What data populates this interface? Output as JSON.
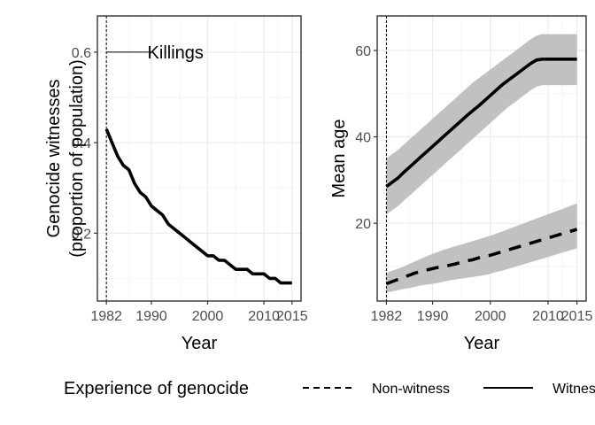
{
  "chart_data": [
    {
      "type": "line",
      "x": [
        1982,
        1983,
        1984,
        1985,
        1986,
        1987,
        1988,
        1989,
        1990,
        1991,
        1992,
        1993,
        1994,
        1995,
        1996,
        1997,
        1998,
        1999,
        2000,
        2001,
        2002,
        2003,
        2004,
        2005,
        2006,
        2007,
        2008,
        2009,
        2010,
        2011,
        2012,
        2013,
        2014,
        2015
      ],
      "series": [
        {
          "values": [
            0.43,
            0.4,
            0.37,
            0.35,
            0.34,
            0.31,
            0.29,
            0.28,
            0.26,
            0.25,
            0.24,
            0.22,
            0.21,
            0.2,
            0.19,
            0.18,
            0.17,
            0.16,
            0.15,
            0.15,
            0.14,
            0.14,
            0.13,
            0.12,
            0.12,
            0.12,
            0.11,
            0.11,
            0.11,
            0.1,
            0.1,
            0.09,
            0.09,
            0.09
          ],
          "linetype": "solid",
          "color": "#000000"
        }
      ],
      "xlabel": "Year",
      "ylabel_lines": [
        "Genocide witnesses",
        "(proportion of population)"
      ],
      "xticks": [
        1982,
        1990,
        2000,
        2010,
        2015
      ],
      "yticks": [
        0.2,
        0.4,
        0.6
      ],
      "ytick_labels": [
        "0.2",
        "0.4",
        "0.6"
      ],
      "xlim": [
        1980.4,
        1016.6
      ],
      "ylim": [
        0.05,
        0.68
      ],
      "vline": 1982,
      "annotation": {
        "text": "Killings",
        "x": 1983.2,
        "y": 0.6
      },
      "grid": true
    },
    {
      "type": "line",
      "x": [
        1982,
        1983,
        1984,
        1985,
        1986,
        1987,
        1988,
        1989,
        1990,
        1991,
        1992,
        1993,
        1994,
        1995,
        1996,
        1997,
        1998,
        1999,
        2000,
        2001,
        2002,
        2003,
        2004,
        2005,
        2006,
        2007,
        2008,
        2009,
        2010,
        2011,
        2012,
        2013,
        2014,
        2015
      ],
      "series": [
        {
          "name": "Non-witness",
          "linetype": "dashed",
          "color": "#000000",
          "values": [
            6.0,
            6.5,
            7.0,
            7.5,
            8.0,
            8.5,
            8.9,
            9.2,
            9.5,
            9.8,
            10.0,
            10.3,
            10.6,
            11.0,
            11.3,
            11.6,
            12.0,
            12.3,
            12.6,
            13.0,
            13.4,
            13.8,
            14.2,
            14.6,
            15.0,
            15.4,
            15.8,
            16.2,
            16.6,
            17.0,
            17.4,
            17.8,
            18.2,
            18.6
          ],
          "lower": [
            4.0,
            4.2,
            4.5,
            4.8,
            5.0,
            5.3,
            5.6,
            5.8,
            6.0,
            6.2,
            6.5,
            6.8,
            7.0,
            7.2,
            7.4,
            7.6,
            7.8,
            8.0,
            8.3,
            8.7,
            9.0,
            9.4,
            9.8,
            10.2,
            10.6,
            11.0,
            11.4,
            11.8,
            12.2,
            12.6,
            13.0,
            13.4,
            13.8,
            14.2
          ],
          "upper": [
            8.5,
            9.0,
            9.5,
            10.0,
            10.6,
            11.2,
            11.8,
            12.4,
            12.9,
            13.4,
            13.9,
            14.3,
            14.7,
            15.1,
            15.5,
            15.9,
            16.3,
            16.7,
            17.1,
            17.6,
            18.1,
            18.6,
            19.1,
            19.6,
            20.1,
            20.6,
            21.1,
            21.6,
            22.1,
            22.6,
            23.1,
            23.6,
            24.1,
            24.6
          ]
        },
        {
          "name": "Witness",
          "linetype": "solid",
          "color": "#000000",
          "values": [
            28.5,
            29.5,
            30.5,
            31.8,
            33.0,
            34.2,
            35.4,
            36.6,
            37.8,
            39.0,
            40.2,
            41.4,
            42.6,
            43.8,
            45.0,
            46.1,
            47.2,
            48.4,
            49.6,
            50.8,
            52.0,
            53.0,
            54.0,
            55.0,
            56.0,
            57.0,
            57.8,
            58.0,
            58.0,
            58.0,
            58.0,
            58.0,
            58.0,
            58.0
          ],
          "lower": [
            22.0,
            23.0,
            24.0,
            25.2,
            26.4,
            27.6,
            28.8,
            30.0,
            31.2,
            32.4,
            33.6,
            34.8,
            36.0,
            37.2,
            38.4,
            39.6,
            40.8,
            42.0,
            43.2,
            44.4,
            45.6,
            46.8,
            47.8,
            48.8,
            49.8,
            50.8,
            51.6,
            52.0,
            52.0,
            52.0,
            52.0,
            52.0,
            52.0,
            52.0
          ],
          "upper": [
            35.0,
            36.0,
            37.0,
            38.2,
            39.4,
            40.6,
            41.8,
            43.0,
            44.2,
            45.4,
            46.6,
            47.8,
            49.0,
            50.2,
            51.4,
            52.6,
            53.6,
            54.6,
            55.6,
            56.6,
            57.6,
            58.6,
            59.6,
            60.6,
            61.6,
            62.6,
            63.4,
            63.8,
            63.8,
            63.8,
            63.8,
            63.8,
            63.8,
            63.8
          ]
        }
      ],
      "xlabel": "Year",
      "ylabel_lines": [
        "Mean age"
      ],
      "xticks": [
        1982,
        1990,
        2000,
        2010,
        2015
      ],
      "yticks": [
        20,
        40,
        60
      ],
      "ytick_labels": [
        "20",
        "40",
        "60"
      ],
      "xlim": [
        1980.4,
        2016.6
      ],
      "ylim": [
        2,
        68
      ],
      "vline": 1982,
      "grid": true
    }
  ],
  "legend": {
    "title": "Experience of genocide",
    "entries": [
      {
        "label": "Non-witness",
        "linetype": "dashed"
      },
      {
        "label": "Witness",
        "linetype": "solid"
      }
    ]
  },
  "colors": {
    "ribbon": "#bebebe",
    "grid_major": "#ebebeb",
    "grid_minor": "#f5f5f5",
    "panel_border": "#333333",
    "tick_label": "#4d4d4d"
  }
}
